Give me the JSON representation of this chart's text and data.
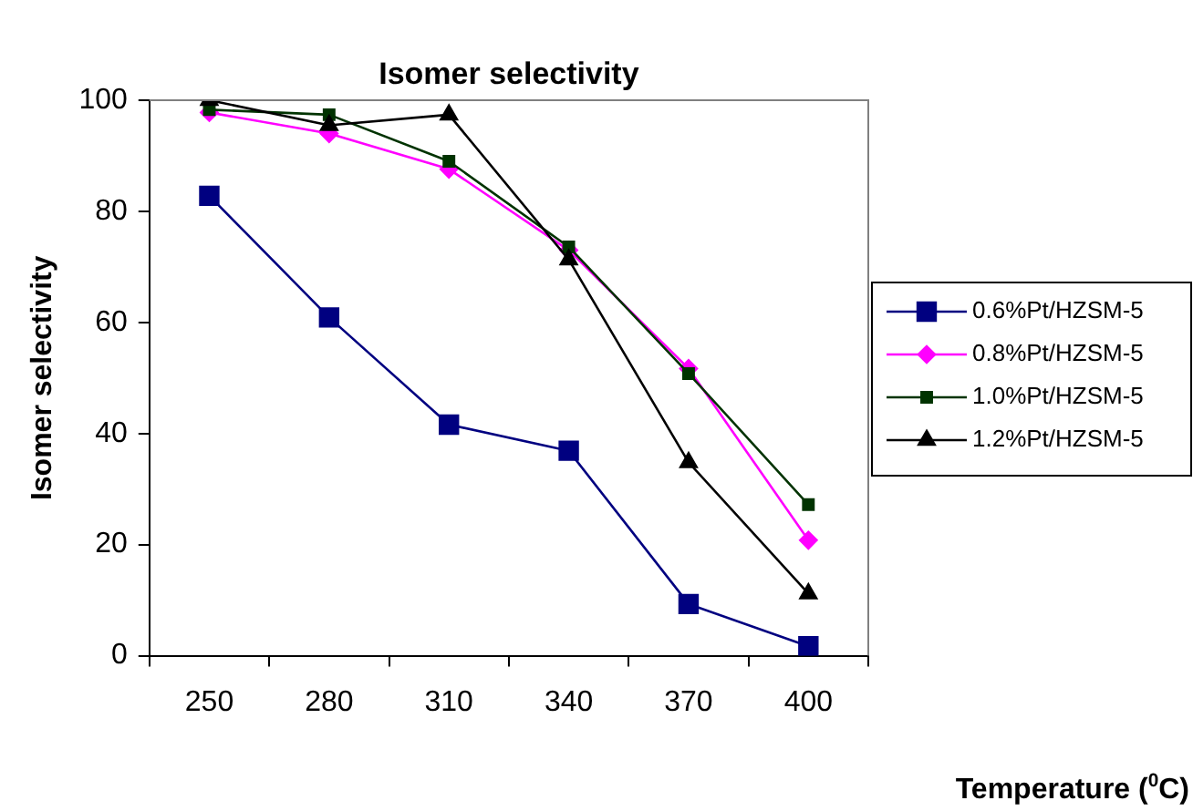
{
  "chart_data": {
    "type": "line",
    "title": "Isomer selectivity",
    "xlabel": "Temperature ($^{0}$C)",
    "ylabel": "Isomer selectivity",
    "categories": [
      "250",
      "280",
      "310",
      "340",
      "370",
      "400"
    ],
    "ylim": [
      0,
      100
    ],
    "yticks": [
      0,
      20,
      40,
      60,
      80,
      100
    ],
    "grid": false,
    "legend": "right",
    "line_style": "solid",
    "series": [
      {
        "name": "0.6%Pt/HZSM-5",
        "color": "#000080",
        "marker": "square",
        "values": [
          82.8,
          60.9,
          41.6,
          36.9,
          9.3,
          1.7
        ]
      },
      {
        "name": "0.8%Pt/HZSM-5",
        "color": "#ff00ff",
        "marker": "diamond",
        "values": [
          97.8,
          94,
          87.6,
          73,
          51.7,
          20.8
        ]
      },
      {
        "name": "1.0%Pt/HZSM-5",
        "color": "#003300",
        "marker": "square",
        "values": [
          98.3,
          97.4,
          89,
          73.6,
          50.8,
          27.2
        ]
      },
      {
        "name": "1.2%Pt/HZSM-5",
        "color": "#000000",
        "marker": "triangle",
        "values": [
          100,
          95.5,
          97.4,
          71.3,
          34.8,
          11.2
        ]
      }
    ]
  }
}
